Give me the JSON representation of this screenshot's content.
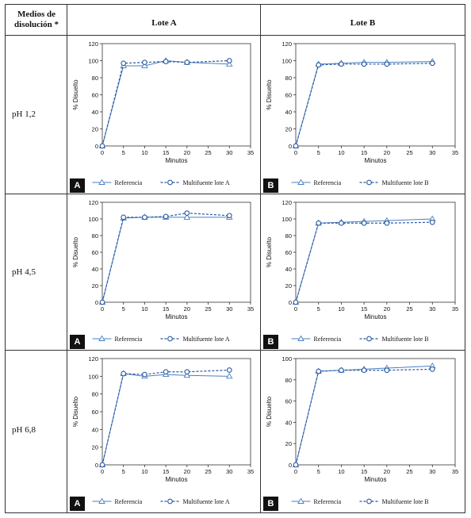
{
  "header": {
    "col0": "Medios de disolución *",
    "col1": "Lote A",
    "col2": "Lote B"
  },
  "rows": [
    {
      "label": "pH 1,2"
    },
    {
      "label": "pH 4,5"
    },
    {
      "label": "pH 6,8"
    }
  ],
  "colors": {
    "line": "#4a7fc0",
    "marker_dark": "#2a5aa0",
    "text": "#111111"
  },
  "chart_data": [
    {
      "type": "line",
      "panel": "A",
      "xlabel": "Minutos",
      "ylabel": "% Disuelto",
      "xlim": [
        0,
        35
      ],
      "ylim": [
        0,
        120
      ],
      "xticks": [
        0,
        5,
        10,
        15,
        20,
        25,
        30,
        35
      ],
      "yticks": [
        0,
        20,
        40,
        60,
        80,
        100,
        120
      ],
      "legend_position": "bottom",
      "series": [
        {
          "name": "Referencia",
          "marker": "triangle",
          "style": "solid",
          "x": [
            0,
            5,
            10,
            15,
            20,
            30
          ],
          "y": [
            0,
            94,
            94,
            100,
            98,
            96
          ]
        },
        {
          "name": "Multifuente lote A",
          "marker": "circle",
          "style": "dashed",
          "x": [
            0,
            5,
            10,
            15,
            20,
            30
          ],
          "y": [
            0,
            97,
            98,
            99,
            98,
            100
          ]
        }
      ]
    },
    {
      "type": "line",
      "panel": "B",
      "xlabel": "Minutos",
      "ylabel": "% Disuelto",
      "xlim": [
        0,
        35
      ],
      "ylim": [
        0,
        120
      ],
      "xticks": [
        0,
        5,
        10,
        15,
        20,
        25,
        30,
        35
      ],
      "yticks": [
        0,
        20,
        40,
        60,
        80,
        100,
        120
      ],
      "legend_position": "bottom",
      "series": [
        {
          "name": "Referencia",
          "marker": "triangle",
          "style": "solid",
          "x": [
            0,
            5,
            10,
            15,
            20,
            30
          ],
          "y": [
            0,
            96,
            97,
            98,
            98,
            99
          ]
        },
        {
          "name": "Multifuente lote B",
          "marker": "circle",
          "style": "dashed",
          "x": [
            0,
            5,
            10,
            15,
            20,
            30
          ],
          "y": [
            0,
            95,
            96,
            96,
            96,
            97
          ]
        }
      ]
    },
    {
      "type": "line",
      "panel": "A",
      "xlabel": "Minutos",
      "ylabel": "% Disuelto",
      "xlim": [
        0,
        35
      ],
      "ylim": [
        0,
        120
      ],
      "xticks": [
        0,
        5,
        10,
        15,
        20,
        25,
        30,
        35
      ],
      "yticks": [
        0,
        20,
        40,
        60,
        80,
        100,
        120
      ],
      "legend_position": "bottom",
      "series": [
        {
          "name": "Referencia",
          "marker": "triangle",
          "style": "solid",
          "x": [
            0,
            5,
            10,
            15,
            20,
            30
          ],
          "y": [
            0,
            101,
            102,
            102,
            102,
            102
          ]
        },
        {
          "name": "Multifuente lote A",
          "marker": "circle",
          "style": "dashed",
          "x": [
            0,
            5,
            10,
            15,
            20,
            30
          ],
          "y": [
            0,
            102,
            102,
            103,
            107,
            104
          ]
        }
      ]
    },
    {
      "type": "line",
      "panel": "B",
      "xlabel": "Minutos",
      "ylabel": "% Disuelto",
      "xlim": [
        0,
        35
      ],
      "ylim": [
        0,
        120
      ],
      "xticks": [
        0,
        5,
        10,
        15,
        20,
        25,
        30,
        35
      ],
      "yticks": [
        0,
        20,
        40,
        60,
        80,
        100,
        120
      ],
      "legend_position": "bottom",
      "series": [
        {
          "name": "Referencia",
          "marker": "triangle",
          "style": "solid",
          "x": [
            0,
            5,
            10,
            15,
            20,
            30
          ],
          "y": [
            0,
            95,
            96,
            97,
            98,
            100
          ]
        },
        {
          "name": "Multifuente lote B",
          "marker": "circle",
          "style": "dashed",
          "x": [
            0,
            5,
            10,
            15,
            20,
            30
          ],
          "y": [
            0,
            95,
            95,
            95,
            95,
            96
          ]
        }
      ]
    },
    {
      "type": "line",
      "panel": "A",
      "xlabel": "Minutos",
      "ylabel": "% Disuelto",
      "xlim": [
        0,
        35
      ],
      "ylim": [
        0,
        120
      ],
      "xticks": [
        0,
        5,
        10,
        15,
        20,
        25,
        30,
        35
      ],
      "yticks": [
        0,
        20,
        40,
        60,
        80,
        100,
        120
      ],
      "legend_position": "bottom",
      "series": [
        {
          "name": "Referencia",
          "marker": "triangle",
          "style": "solid",
          "x": [
            0,
            5,
            10,
            15,
            20,
            30
          ],
          "y": [
            0,
            103,
            100,
            102,
            101,
            100
          ]
        },
        {
          "name": "Multifuente lote A",
          "marker": "circle",
          "style": "dashed",
          "x": [
            0,
            5,
            10,
            15,
            20,
            30
          ],
          "y": [
            0,
            103,
            102,
            105,
            105,
            107
          ]
        }
      ]
    },
    {
      "type": "line",
      "panel": "B",
      "xlabel": "Minutos",
      "ylabel": "% Disuelto",
      "xlim": [
        0,
        35
      ],
      "ylim": [
        0,
        100
      ],
      "xticks": [
        0,
        5,
        10,
        15,
        20,
        25,
        30,
        35
      ],
      "yticks": [
        0,
        20,
        40,
        60,
        80,
        100
      ],
      "legend_position": "bottom",
      "series": [
        {
          "name": "Referencia",
          "marker": "triangle",
          "style": "solid",
          "x": [
            0,
            5,
            10,
            15,
            20,
            30
          ],
          "y": [
            0,
            88,
            89,
            90,
            91,
            93
          ]
        },
        {
          "name": "Multifuente lote B",
          "marker": "circle",
          "style": "dashed",
          "x": [
            0,
            5,
            10,
            15,
            20,
            30
          ],
          "y": [
            0,
            88,
            89,
            89,
            89,
            90
          ]
        }
      ]
    }
  ]
}
